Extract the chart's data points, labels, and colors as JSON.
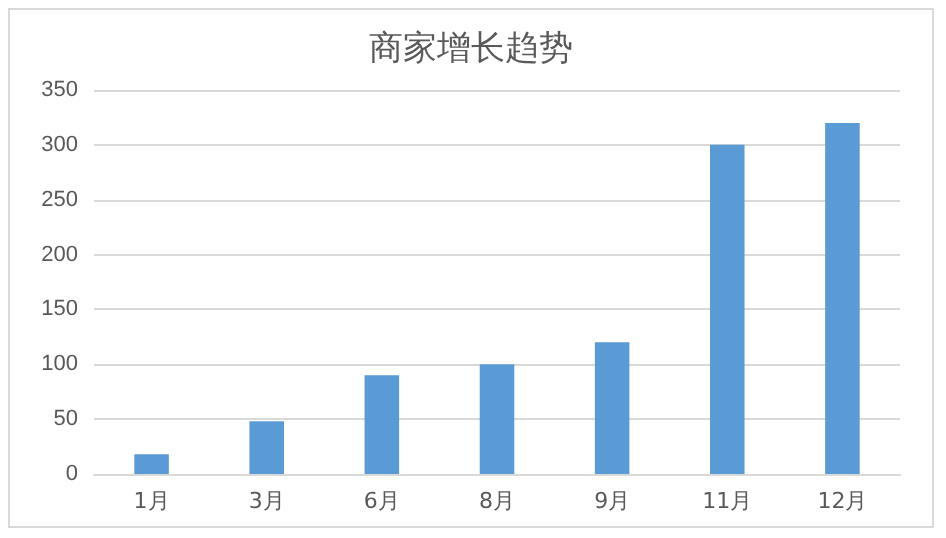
{
  "chart_data": {
    "type": "bar",
    "title": "商家增长趋势",
    "categories": [
      "1月",
      "3月",
      "6月",
      "8月",
      "9月",
      "11月",
      "12月"
    ],
    "values": [
      18,
      48,
      90,
      100,
      120,
      300,
      320
    ],
    "color": "#5b9bd5",
    "ylim": [
      0,
      350
    ],
    "yticks": [
      0,
      50,
      100,
      150,
      200,
      250,
      300,
      350
    ],
    "grid": "y"
  }
}
